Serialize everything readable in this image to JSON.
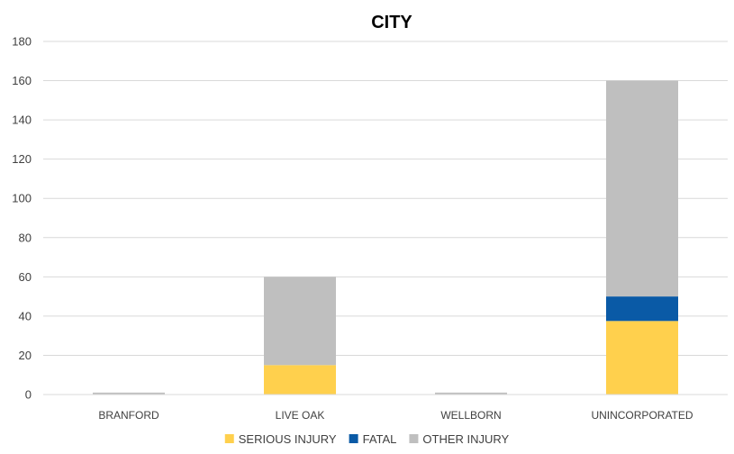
{
  "chart_data": {
    "type": "bar",
    "stacked": true,
    "title": "CITY",
    "xlabel": "",
    "ylabel": "",
    "categories": [
      "BRANFORD",
      "LIVE OAK",
      "WELLBORN",
      "UNINCORPORATED"
    ],
    "series": [
      {
        "name": "SERIOUS INJURY",
        "color": "#ffd04d",
        "values": [
          0,
          15,
          0,
          37.5
        ]
      },
      {
        "name": "FATAL",
        "color": "#0a5aa6",
        "values": [
          0,
          0,
          0,
          12.5
        ]
      },
      {
        "name": "OTHER INJURY",
        "color": "#bfbfbf",
        "values": [
          1,
          45,
          1,
          110
        ]
      }
    ],
    "ylim": [
      0,
      180
    ],
    "yticks": [
      0,
      20,
      40,
      60,
      80,
      100,
      120,
      140,
      160,
      180
    ],
    "grid": true,
    "legend_position": "bottom"
  }
}
